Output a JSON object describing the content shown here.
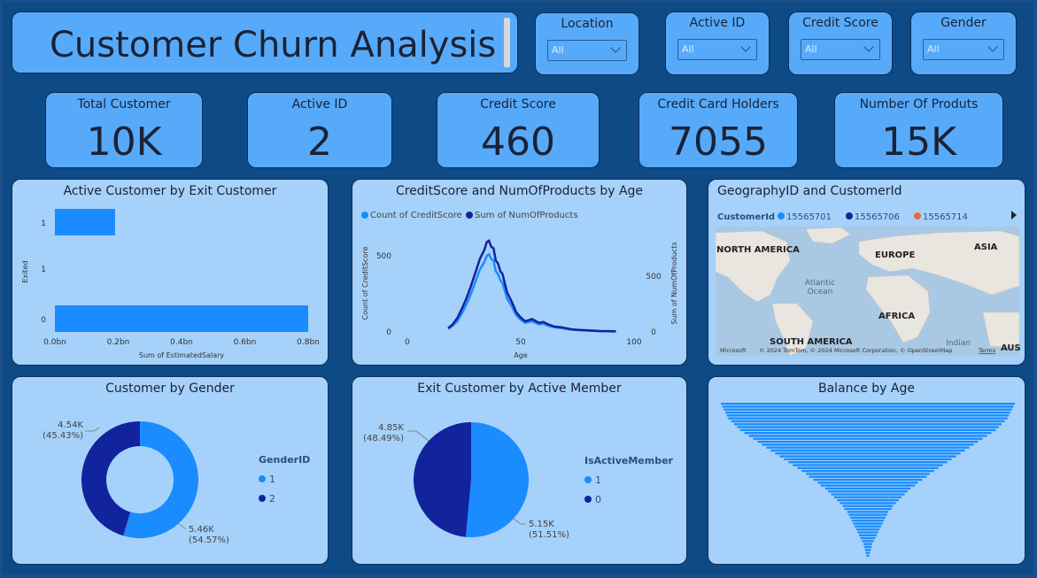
{
  "title": "Customer Churn Analysis",
  "slicers": [
    {
      "label": "Location",
      "value": "All"
    },
    {
      "label": "Active ID",
      "value": "All"
    },
    {
      "label": "Credit Score",
      "value": "All"
    },
    {
      "label": "Gender",
      "value": "All"
    }
  ],
  "kpis": [
    {
      "label": "Total Customer",
      "value": "10K"
    },
    {
      "label": "Active ID",
      "value": "2"
    },
    {
      "label": "Credit Score",
      "value": "460"
    },
    {
      "label": "Credit Card Holders",
      "value": "7055"
    },
    {
      "label": "Number Of Produts",
      "value": "15K"
    }
  ],
  "map": {
    "title": "GeographyID and CustomerId",
    "legend_title": "CustomerId",
    "legend": [
      {
        "name": "15565701",
        "color": "#1a8cff"
      },
      {
        "name": "15565706",
        "color": "#12239e"
      },
      {
        "name": "15565714",
        "color": "#e66c37"
      }
    ],
    "labels": [
      "NORTH AMERICA",
      "EUROPE",
      "ASIA",
      "Atlantic",
      "Ocean",
      "AFRICA",
      "SOUTH AMERICA",
      "Indian",
      "AUS"
    ],
    "attribution": "© 2024 TomTom, © 2024 Microsoft Corporation, © OpenStreetMap",
    "terms": "Terms",
    "brand": "Microsoft"
  },
  "chart_data": [
    {
      "type": "bar",
      "orientation": "horizontal",
      "title": "Active Customer by Exit Customer",
      "categories": [
        "1",
        "1",
        "0"
      ],
      "values": [
        0.19,
        0,
        0.8
      ],
      "xlabel": "Sum of EstimatedSalary",
      "ylabel": "Exited",
      "xticks": [
        "0.0bn",
        "0.2bn",
        "0.4bn",
        "0.6bn",
        "0.8bn"
      ],
      "xlim": [
        0,
        0.8
      ],
      "color": "#1a8cff"
    },
    {
      "type": "line",
      "title": "CreditScore and NumOfProducts by Age",
      "xlabel": "Age",
      "ylabel": "Count of CreditScore",
      "y2label": "Sum of NumOfProducts",
      "xlim": [
        0,
        100
      ],
      "xticks": [
        "0",
        "50",
        "100"
      ],
      "yticks": [
        "0",
        "500"
      ],
      "y2ticks": [
        "0",
        "500"
      ],
      "ylim": [
        0,
        640
      ],
      "series": [
        {
          "name": "Count of CreditScore",
          "color": "#1a8cff",
          "x": [
            18,
            20,
            22,
            24,
            26,
            28,
            30,
            32,
            34,
            35,
            36,
            37,
            38,
            39,
            40,
            41,
            42,
            44,
            46,
            48,
            50,
            52,
            55,
            58,
            60,
            62,
            65,
            68,
            70,
            72,
            75,
            80,
            85,
            92
          ],
          "y": [
            20,
            40,
            70,
            120,
            180,
            250,
            330,
            410,
            460,
            500,
            510,
            480,
            470,
            400,
            380,
            340,
            320,
            220,
            170,
            110,
            80,
            60,
            70,
            50,
            55,
            40,
            30,
            25,
            20,
            15,
            12,
            8,
            5,
            3
          ]
        },
        {
          "name": "Sum of NumOfProducts",
          "color": "#12239e",
          "x": [
            18,
            20,
            22,
            24,
            26,
            28,
            30,
            32,
            34,
            35,
            36,
            37,
            38,
            39,
            40,
            41,
            42,
            44,
            46,
            48,
            50,
            52,
            55,
            58,
            60,
            62,
            65,
            68,
            70,
            72,
            75,
            80,
            85,
            92
          ],
          "y": [
            25,
            50,
            90,
            150,
            220,
            300,
            390,
            480,
            540,
            590,
            600,
            560,
            550,
            470,
            450,
            400,
            380,
            260,
            200,
            130,
            95,
            70,
            85,
            60,
            65,
            50,
            35,
            30,
            25,
            18,
            14,
            10,
            6,
            4
          ]
        }
      ]
    },
    {
      "type": "pie",
      "style": "donut",
      "title": "Customer by Gender",
      "legend_title": "GenderID",
      "slices": [
        {
          "name": "1",
          "value": 5.46,
          "label": "5.46K",
          "pct": "(54.57%)",
          "color": "#1a8cff"
        },
        {
          "name": "2",
          "value": 4.54,
          "label": "4.54K",
          "pct": "(45.43%)",
          "color": "#12239e"
        }
      ]
    },
    {
      "type": "pie",
      "title": "Exit Customer by Active Member",
      "legend_title": "IsActiveMember",
      "slices": [
        {
          "name": "1",
          "value": 5.15,
          "label": "5.15K",
          "pct": "(51.51%)",
          "color": "#1a8cff"
        },
        {
          "name": "0",
          "value": 4.85,
          "label": "4.85K",
          "pct": "(48.49%)",
          "color": "#12239e"
        }
      ]
    },
    {
      "type": "bar",
      "orientation": "horizontal",
      "style": "centered-funnel",
      "title": "Balance by Age",
      "values": [
        100,
        99,
        98,
        97,
        96,
        95,
        93,
        91,
        89,
        87,
        84,
        81,
        78,
        75,
        72,
        69,
        66,
        63,
        60,
        57,
        54,
        51,
        48,
        45,
        42,
        40,
        37,
        34,
        32,
        29,
        27,
        25,
        23,
        21,
        19,
        17,
        16,
        14,
        13,
        12,
        11,
        10,
        9,
        8,
        7,
        6,
        5,
        4,
        3,
        2.5,
        2,
        1.5,
        1
      ],
      "color": "#1a8cff"
    }
  ]
}
